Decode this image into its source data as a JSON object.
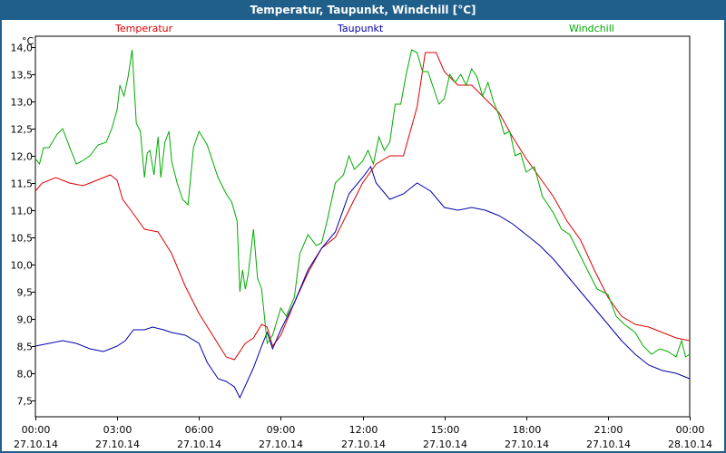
{
  "window": {
    "title": "Temperatur, Taupunkt, Windchill [°C]"
  },
  "chart_data": {
    "type": "line",
    "title": "Temperatur, Taupunkt, Windchill [°C]",
    "ylabel": "°C",
    "ylim": [
      7.2,
      14.2
    ],
    "xlim": [
      "27.10.14 00:00",
      "28.10.14 00:00"
    ],
    "grid": true,
    "legend_position": "top",
    "y_ticks": [
      "7,5",
      "8,0",
      "8,5",
      "9,0",
      "9,5",
      "10,0",
      "10,5",
      "11,0",
      "11,5",
      "12,0",
      "12,5",
      "13,0",
      "13,5",
      "14,0"
    ],
    "x_ticks": [
      {
        "time": "00:00",
        "date": "27.10.14"
      },
      {
        "time": "03:00",
        "date": "27.10.14"
      },
      {
        "time": "06:00",
        "date": "27.10.14"
      },
      {
        "time": "09:00",
        "date": "27.10.14"
      },
      {
        "time": "12:00",
        "date": "27.10.14"
      },
      {
        "time": "15:00",
        "date": "27.10.14"
      },
      {
        "time": "18:00",
        "date": "27.10.14"
      },
      {
        "time": "21:00",
        "date": "27.10.14"
      },
      {
        "time": "00:00",
        "date": "28.10.14"
      }
    ],
    "series": [
      {
        "name": "Temperatur",
        "color": "#dd0000",
        "hours": [
          0.0,
          0.25,
          0.75,
          1.25,
          1.75,
          2.25,
          2.75,
          3.0,
          3.2,
          3.5,
          4.0,
          4.5,
          5.0,
          5.5,
          6.0,
          6.5,
          7.0,
          7.3,
          7.7,
          8.0,
          8.3,
          8.5,
          8.7,
          9.0,
          9.5,
          10.0,
          10.5,
          11.0,
          11.5,
          12.0,
          12.5,
          13.0,
          13.5,
          14.0,
          14.3,
          14.7,
          15.0,
          15.5,
          16.0,
          16.5,
          17.0,
          17.5,
          18.0,
          18.5,
          19.0,
          19.5,
          20.0,
          20.5,
          21.0,
          21.5,
          22.0,
          22.5,
          23.0,
          23.5,
          24.0
        ],
        "values": [
          11.35,
          11.5,
          11.6,
          11.5,
          11.45,
          11.55,
          11.65,
          11.55,
          11.2,
          11.0,
          10.65,
          10.6,
          10.2,
          9.6,
          9.1,
          8.7,
          8.3,
          8.25,
          8.55,
          8.65,
          8.9,
          8.85,
          8.5,
          8.7,
          9.3,
          9.85,
          10.3,
          10.5,
          11.0,
          11.5,
          11.85,
          12.0,
          12.0,
          12.9,
          13.9,
          13.9,
          13.55,
          13.3,
          13.3,
          13.05,
          12.8,
          12.35,
          11.95,
          11.6,
          11.25,
          10.8,
          10.45,
          9.9,
          9.4,
          9.05,
          8.9,
          8.85,
          8.75,
          8.65,
          8.6
        ]
      },
      {
        "name": "Taupunkt",
        "color": "#0000aa",
        "hours": [
          0.0,
          0.5,
          1.0,
          1.5,
          2.0,
          2.5,
          3.0,
          3.3,
          3.6,
          4.0,
          4.3,
          4.7,
          5.0,
          5.5,
          6.0,
          6.3,
          6.7,
          7.0,
          7.3,
          7.5,
          8.0,
          8.3,
          8.5,
          8.7,
          9.0,
          9.5,
          10.0,
          10.5,
          11.0,
          11.5,
          12.0,
          12.3,
          12.5,
          13.0,
          13.5,
          14.0,
          14.5,
          15.0,
          15.5,
          16.0,
          16.5,
          17.0,
          17.5,
          18.0,
          18.5,
          19.0,
          19.5,
          20.0,
          20.5,
          21.0,
          21.5,
          22.0,
          22.5,
          23.0,
          23.5,
          24.0
        ],
        "values": [
          8.5,
          8.55,
          8.6,
          8.55,
          8.45,
          8.4,
          8.5,
          8.6,
          8.8,
          8.8,
          8.85,
          8.8,
          8.75,
          8.7,
          8.55,
          8.2,
          7.9,
          7.85,
          7.75,
          7.55,
          8.1,
          8.5,
          8.75,
          8.45,
          8.8,
          9.3,
          9.9,
          10.3,
          10.6,
          11.3,
          11.6,
          11.8,
          11.5,
          11.2,
          11.3,
          11.5,
          11.35,
          11.05,
          11.0,
          11.05,
          11.0,
          10.9,
          10.75,
          10.55,
          10.35,
          10.1,
          9.8,
          9.5,
          9.2,
          8.9,
          8.6,
          8.35,
          8.15,
          8.05,
          8.0,
          7.9
        ]
      },
      {
        "name": "Windchill",
        "color": "#00aa00",
        "hours": [
          0.0,
          0.15,
          0.3,
          0.5,
          0.8,
          1.0,
          1.3,
          1.5,
          1.7,
          2.0,
          2.3,
          2.6,
          2.8,
          3.0,
          3.1,
          3.25,
          3.4,
          3.55,
          3.7,
          3.85,
          4.0,
          4.1,
          4.2,
          4.35,
          4.5,
          4.6,
          4.75,
          4.9,
          5.0,
          5.2,
          5.4,
          5.6,
          5.8,
          6.0,
          6.3,
          6.7,
          7.0,
          7.2,
          7.4,
          7.5,
          7.6,
          7.7,
          7.8,
          8.0,
          8.15,
          8.3,
          8.5,
          8.7,
          9.0,
          9.2,
          9.5,
          9.7,
          10.0,
          10.3,
          10.5,
          10.7,
          11.0,
          11.3,
          11.5,
          11.7,
          12.0,
          12.2,
          12.4,
          12.6,
          12.8,
          13.0,
          13.2,
          13.4,
          13.6,
          13.8,
          14.0,
          14.2,
          14.4,
          14.6,
          14.8,
          15.0,
          15.2,
          15.4,
          15.6,
          15.8,
          16.0,
          16.2,
          16.4,
          16.6,
          16.8,
          17.0,
          17.2,
          17.4,
          17.6,
          17.8,
          18.0,
          18.3,
          18.6,
          19.0,
          19.3,
          19.6,
          20.0,
          20.3,
          20.6,
          21.0,
          21.3,
          21.6,
          22.0,
          22.3,
          22.6,
          22.9,
          23.2,
          23.5,
          23.7,
          23.85,
          24.0
        ],
        "values": [
          11.95,
          11.85,
          12.15,
          12.15,
          12.4,
          12.5,
          12.1,
          11.85,
          11.9,
          12.0,
          12.2,
          12.25,
          12.5,
          12.85,
          13.3,
          13.1,
          13.45,
          13.95,
          12.6,
          12.45,
          11.6,
          12.05,
          12.1,
          11.65,
          12.35,
          11.6,
          12.25,
          12.45,
          11.9,
          11.5,
          11.2,
          11.1,
          12.15,
          12.45,
          12.2,
          11.6,
          11.3,
          11.15,
          10.8,
          9.5,
          9.9,
          9.55,
          9.8,
          10.65,
          9.75,
          9.55,
          8.55,
          8.7,
          9.2,
          9.05,
          9.4,
          10.2,
          10.55,
          10.35,
          10.4,
          10.8,
          11.5,
          11.65,
          12.0,
          11.75,
          11.9,
          12.1,
          11.85,
          12.35,
          12.1,
          12.25,
          12.95,
          12.95,
          13.5,
          13.95,
          13.9,
          13.55,
          13.55,
          13.25,
          12.95,
          13.05,
          13.5,
          13.35,
          13.5,
          13.3,
          13.6,
          13.45,
          13.1,
          13.35,
          13.0,
          12.75,
          12.4,
          12.45,
          12.0,
          12.05,
          11.7,
          11.8,
          11.25,
          10.95,
          10.65,
          10.55,
          10.15,
          9.85,
          9.55,
          9.45,
          9.05,
          8.9,
          8.75,
          8.5,
          8.35,
          8.45,
          8.4,
          8.3,
          8.6,
          8.3,
          8.35
        ]
      }
    ]
  }
}
